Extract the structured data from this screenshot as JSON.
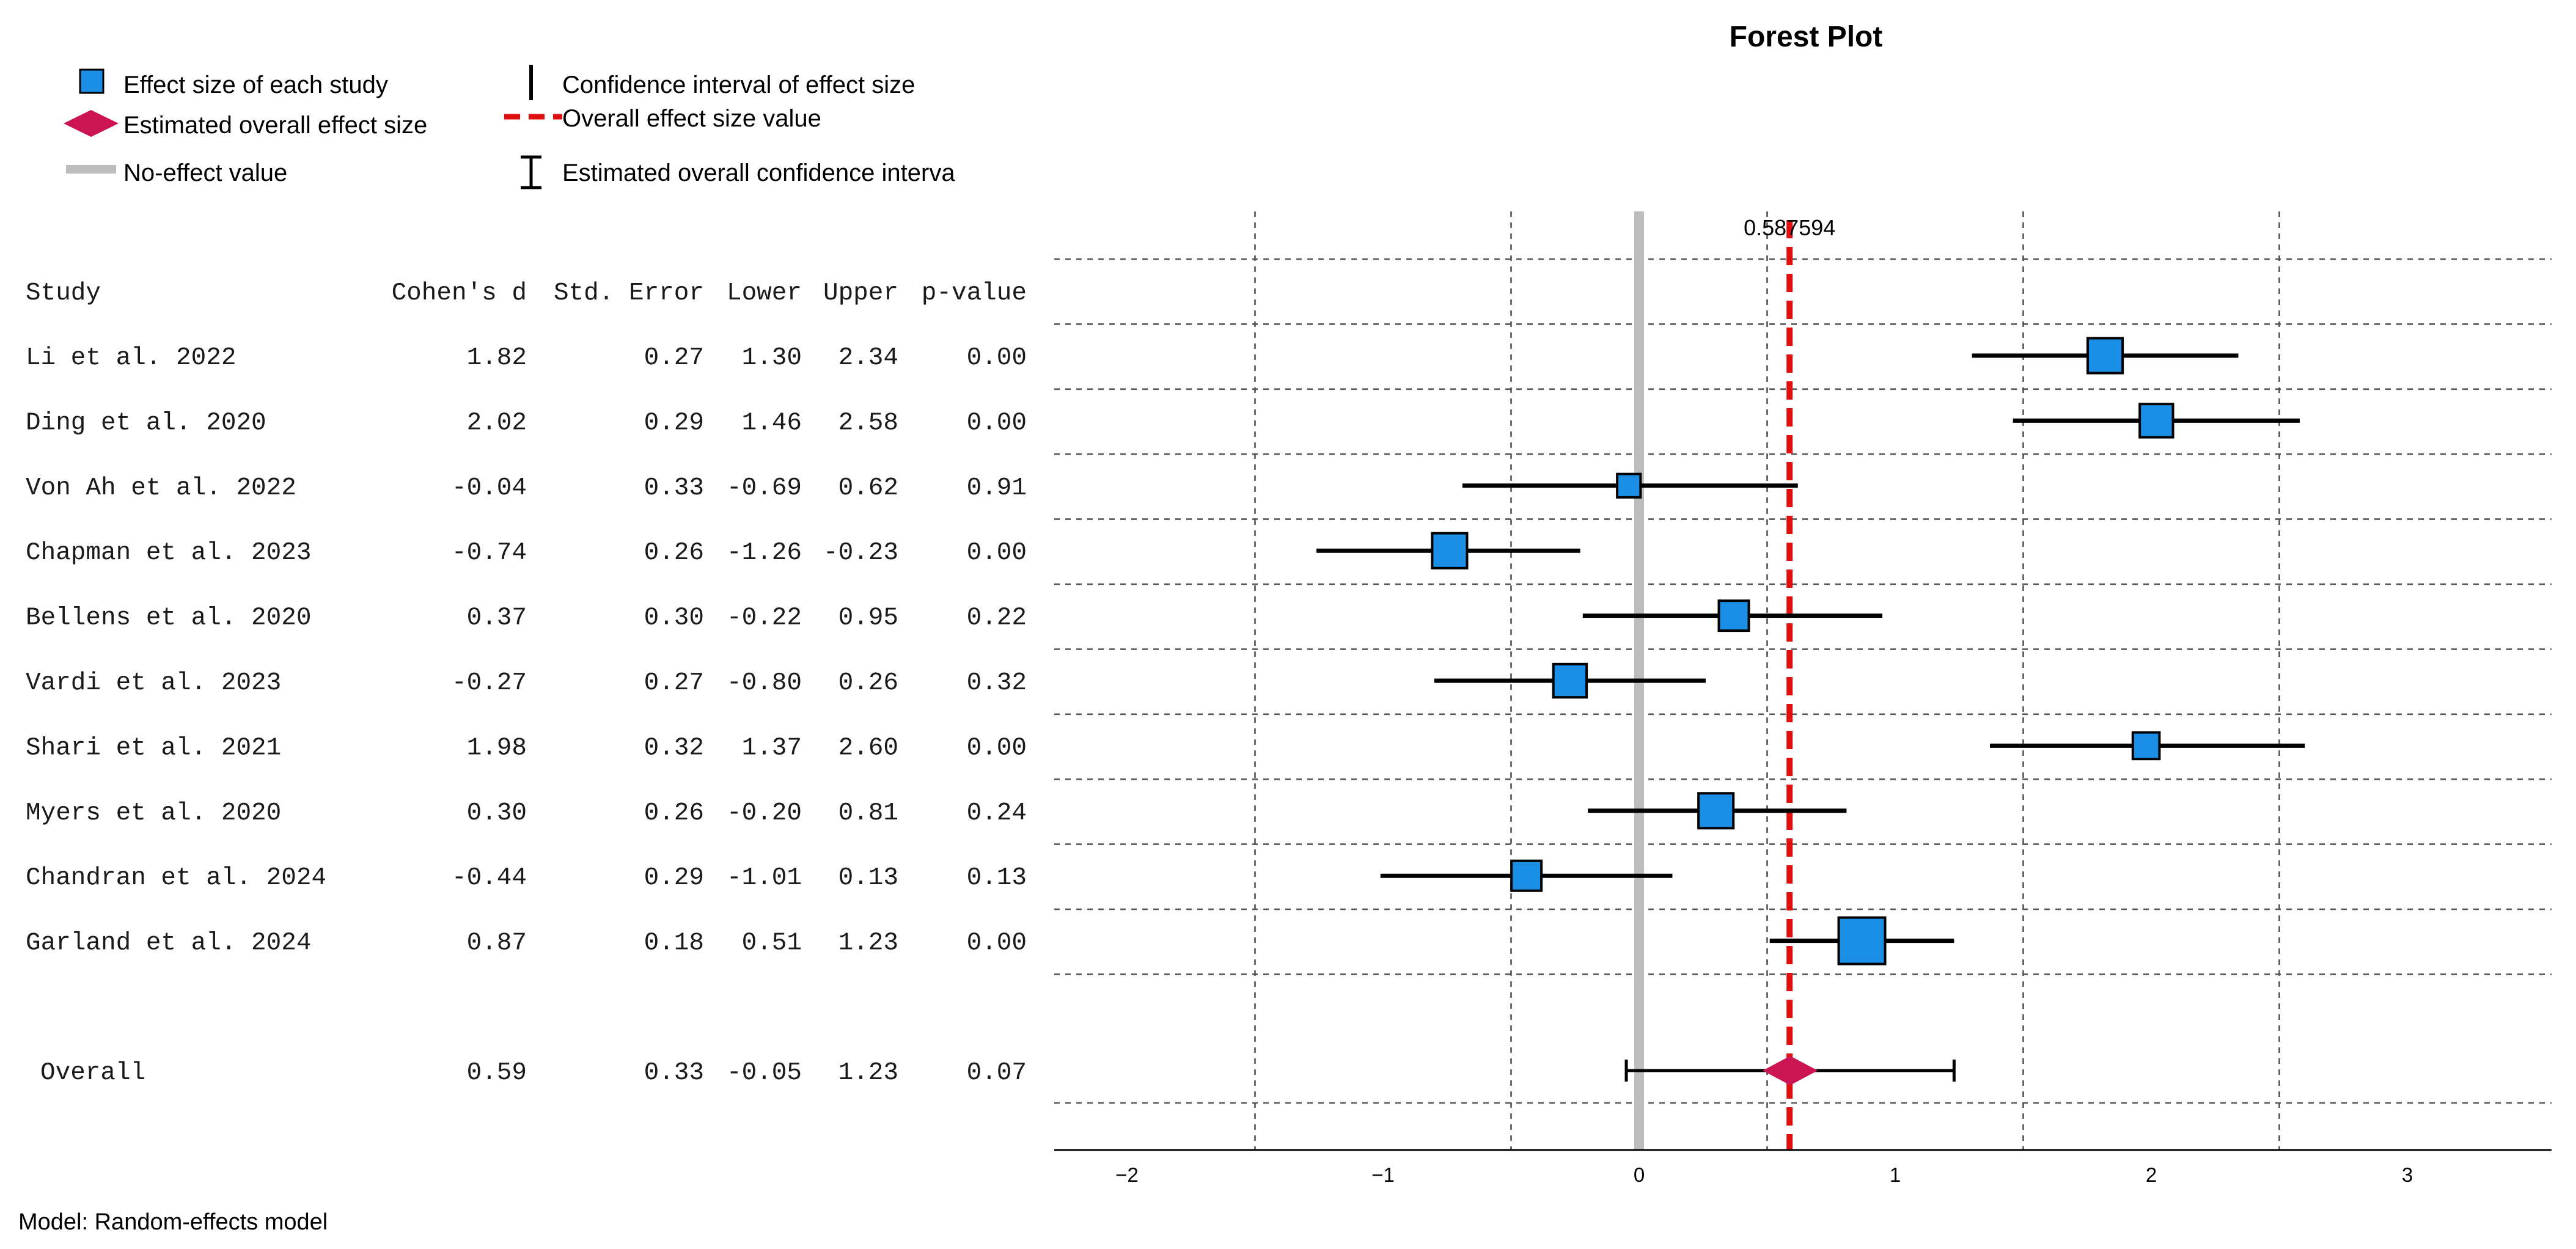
{
  "chart_data": {
    "type": "forest",
    "title": "Forest Plot",
    "legend": {
      "placement": "top-left",
      "items": [
        {
          "symbol": "blue-square",
          "label": "Effect size of each study"
        },
        {
          "symbol": "diamond",
          "label": "Estimated overall effect size"
        },
        {
          "symbol": "gray-line",
          "label": "No-effect value"
        },
        {
          "symbol": "black-vline",
          "label": "Confidence interval of effect size"
        },
        {
          "symbol": "red-dashed-line",
          "label": "Overall effect size value"
        },
        {
          "symbol": "ci-bar",
          "label": "Estimated overall confidence interva"
        }
      ]
    },
    "columns": [
      "Study",
      "Cohen's d",
      "Std. Error",
      "Lower",
      "Upper",
      "p-value"
    ],
    "studies": [
      {
        "name": "Li et al. 2022",
        "d": 1.82,
        "se": 0.27,
        "lower": 1.3,
        "upper": 2.34,
        "p": 0.0,
        "d_txt": "1.82",
        "se_txt": "0.27",
        "lower_txt": "1.30",
        "upper_txt": "2.34",
        "p_txt": "0.00",
        "weight": 0.65
      },
      {
        "name": "Ding et al. 2020",
        "d": 2.02,
        "se": 0.29,
        "lower": 1.46,
        "upper": 2.58,
        "p": 0.0,
        "d_txt": "2.02",
        "se_txt": "0.29",
        "lower_txt": "1.46",
        "upper_txt": "2.58",
        "p_txt": "0.00",
        "weight": 0.6
      },
      {
        "name": "Von Ah et al. 2022",
        "d": -0.04,
        "se": 0.33,
        "lower": -0.69,
        "upper": 0.62,
        "p": 0.91,
        "d_txt": "-0.04",
        "se_txt": "0.33",
        "lower_txt": "-0.69",
        "upper_txt": "0.62",
        "p_txt": "0.91",
        "weight": 0.3
      },
      {
        "name": "Chapman et al. 2023",
        "d": -0.74,
        "se": 0.26,
        "lower": -1.26,
        "upper": -0.23,
        "p": 0.0,
        "d_txt": "-0.74",
        "se_txt": "0.26",
        "lower_txt": "-1.26",
        "upper_txt": "-0.23",
        "p_txt": "0.00",
        "weight": 0.65
      },
      {
        "name": "Bellens et al. 2020",
        "d": 0.37,
        "se": 0.3,
        "lower": -0.22,
        "upper": 0.95,
        "p": 0.22,
        "d_txt": "0.37",
        "se_txt": "0.30",
        "lower_txt": "-0.22",
        "upper_txt": "0.95",
        "p_txt": "0.22",
        "weight": 0.5
      },
      {
        "name": "Vardi et al. 2023",
        "d": -0.27,
        "se": 0.27,
        "lower": -0.8,
        "upper": 0.26,
        "p": 0.32,
        "d_txt": "-0.27",
        "se_txt": "0.27",
        "lower_txt": "-0.80",
        "upper_txt": "0.26",
        "p_txt": "0.32",
        "weight": 0.6
      },
      {
        "name": "Shari et al. 2021",
        "d": 1.98,
        "se": 0.32,
        "lower": 1.37,
        "upper": 2.6,
        "p": 0.0,
        "d_txt": "1.98",
        "se_txt": "0.32",
        "lower_txt": "1.37",
        "upper_txt": "2.60",
        "p_txt": "0.00",
        "weight": 0.4
      },
      {
        "name": "Myers et al. 2020",
        "d": 0.3,
        "se": 0.26,
        "lower": -0.2,
        "upper": 0.81,
        "p": 0.24,
        "d_txt": "0.30",
        "se_txt": "0.26",
        "lower_txt": "-0.20",
        "upper_txt": "0.81",
        "p_txt": "0.24",
        "weight": 0.65
      },
      {
        "name": "Chandran et al. 2024",
        "d": -0.44,
        "se": 0.29,
        "lower": -1.01,
        "upper": 0.13,
        "p": 0.13,
        "d_txt": "-0.44",
        "se_txt": "0.29",
        "lower_txt": "-1.01",
        "upper_txt": "0.13",
        "p_txt": "0.13",
        "weight": 0.5
      },
      {
        "name": "Garland et al. 2024",
        "d": 0.87,
        "se": 0.18,
        "lower": 0.51,
        "upper": 1.23,
        "p": 0.0,
        "d_txt": "0.87",
        "se_txt": "0.18",
        "lower_txt": "0.51",
        "upper_txt": "1.23",
        "p_txt": "0.00",
        "weight": 1.0
      }
    ],
    "overall": {
      "name": "Overall",
      "d": 0.59,
      "se": 0.33,
      "lower": -0.05,
      "upper": 1.23,
      "p": 0.07,
      "d_txt": "0.59",
      "se_txt": "0.33",
      "lower_txt": "-0.05",
      "upper_txt": "1.23",
      "p_txt": "0.07"
    },
    "overall_value_label": "0.587594",
    "overall_value": 0.587594,
    "no_effect_value": 0,
    "xlim": [
      -2.3,
      3.5
    ],
    "x_ticks": [
      -2,
      -1,
      0,
      1,
      2,
      3
    ],
    "x_tick_labels": [
      "−2",
      "−1",
      "0",
      "1",
      "2",
      "3"
    ],
    "x_gridlines": [
      -1.5,
      -0.5,
      0.5,
      1.5,
      2.5
    ],
    "footnote": "Model: Random-effects model",
    "colors": {
      "square": "#1b8fe6",
      "diamond": "#cc1452",
      "overall_line": "#e01010",
      "no_effect": "#bdbdbd",
      "grid": "#555555"
    }
  }
}
